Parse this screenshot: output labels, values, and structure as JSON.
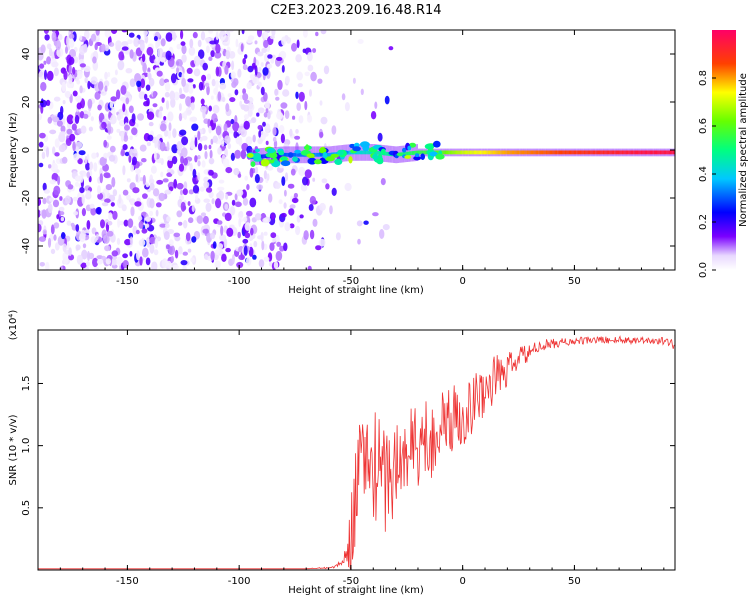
{
  "chart_data": [
    {
      "type": "heatmap",
      "title": "C2E3.2023.209.16.48.R14",
      "xlabel": "Height of straight line (km)",
      "ylabel": "Frequency (Hz)",
      "xlim": [
        -190,
        95
      ],
      "ylim": [
        -50,
        50
      ],
      "xticks": [
        "-150",
        "-100",
        "-50",
        "0",
        "50"
      ],
      "yticks": [
        "-40",
        "-20",
        "0",
        "20",
        "40"
      ],
      "colorbar": {
        "label": "Normalized spectral amplitude",
        "range": [
          0.0,
          1.0
        ],
        "ticks": [
          "0.0",
          "0.2",
          "0.4",
          "0.6",
          "0.8"
        ]
      },
      "noise_region_x": [
        -190,
        -62
      ],
      "signal_track": {
        "x": [
          -95,
          -80,
          -60,
          -50,
          -40,
          -30,
          -20,
          -10,
          0,
          20,
          40,
          60,
          80,
          95
        ],
        "frequency": [
          -3,
          -2,
          -2,
          -1,
          -1,
          -2,
          -1,
          -1,
          -1,
          -1,
          -1,
          -1,
          -1,
          -1
        ],
        "amplitude": [
          0.25,
          0.3,
          0.35,
          0.4,
          0.45,
          0.5,
          0.55,
          0.6,
          0.7,
          0.8,
          0.85,
          0.9,
          0.95,
          0.95
        ]
      }
    },
    {
      "type": "line",
      "xlabel": "Height of straight line (km)",
      "ylabel": "SNR (10 * v/v)",
      "y_multiplier": "(x10⁴)",
      "xlim": [
        -190,
        95
      ],
      "ylim": [
        0,
        1.93
      ],
      "xticks": [
        "-150",
        "-100",
        "-50",
        "0",
        "50"
      ],
      "yticks": [
        "0.5",
        "1.0",
        "1.5"
      ],
      "series_color": "#ee3333",
      "x": [
        -190,
        -150,
        -100,
        -70,
        -58,
        -54,
        -52,
        -50,
        -48,
        -45,
        -40,
        -35,
        -30,
        -25,
        -20,
        -15,
        -10,
        -5,
        0,
        5,
        10,
        15,
        20,
        25,
        30,
        35,
        40,
        50,
        60,
        70,
        80,
        90,
        95
      ],
      "y": [
        0.01,
        0.01,
        0.01,
        0.01,
        0.02,
        0.06,
        0.12,
        0.3,
        0.6,
        0.9,
        0.85,
        0.75,
        0.8,
        0.95,
        1.0,
        1.05,
        1.15,
        1.2,
        1.25,
        1.35,
        1.45,
        1.55,
        1.6,
        1.7,
        1.75,
        1.8,
        1.82,
        1.84,
        1.85,
        1.85,
        1.85,
        1.84,
        1.82
      ],
      "spread": [
        0,
        0,
        0,
        0,
        0.01,
        0.02,
        0.08,
        0.3,
        0.4,
        0.45,
        0.45,
        0.45,
        0.45,
        0.4,
        0.4,
        0.35,
        0.3,
        0.3,
        0.25,
        0.25,
        0.2,
        0.2,
        0.15,
        0.1,
        0.06,
        0.05,
        0.04,
        0.03,
        0.03,
        0.03,
        0.03,
        0.03,
        0.05
      ]
    }
  ]
}
